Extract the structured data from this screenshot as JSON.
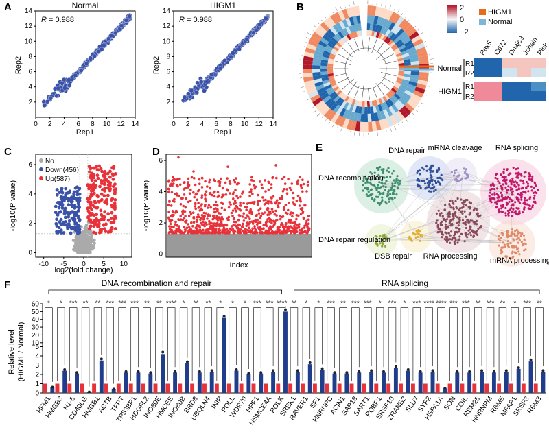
{
  "panels": {
    "A": {
      "label": "A",
      "left_title": "Normal",
      "right_title": "HIGM1",
      "r_text": "= 0.988",
      "r_italic": "R",
      "xlabel": "Rep1",
      "ylabel": "Rep2",
      "ticks": [
        "0",
        "2",
        "4",
        "6",
        "8",
        "10",
        "12",
        "14"
      ]
    },
    "B": {
      "label": "B",
      "legend_scale": [
        "2",
        "0",
        "−2"
      ],
      "legend_groups": [
        "HIGM1",
        "Normal"
      ],
      "heatmap_cols": [
        "Pax5",
        "Cd72",
        "Dnajc3",
        "Jchain",
        "Plek"
      ],
      "heatmap_rows": [
        "R1",
        "R2",
        "R1",
        "R2"
      ],
      "heatmap_groups": [
        "Normal",
        "HIGM1"
      ]
    },
    "C": {
      "label": "C",
      "legend": [
        "No",
        "Down(456)",
        "Up(587)"
      ],
      "xlabel": "log2(fold change)",
      "ylabel": "-log10(P value)",
      "xticks": [
        "-10",
        "-5",
        "0",
        "5",
        "10"
      ],
      "yticks": [
        "0",
        "2",
        "4",
        "6"
      ]
    },
    "D": {
      "label": "D",
      "xlabel": "Index",
      "ylabel": "-log10(P value)",
      "yticks": [
        "0",
        "2",
        "4",
        "6"
      ]
    },
    "E": {
      "label": "E",
      "clusters": [
        "DNA repair",
        "mRNA cleavage",
        "RNA splicing",
        "DNA recombination",
        "DNA repair regulation",
        "DSB repair",
        "RNA processing",
        "mRNA processing"
      ]
    },
    "F": {
      "label": "F",
      "group1": "DNA recombination and repair",
      "group2": "RNA splicing",
      "ylabel1": "Relative level",
      "ylabel2": "(HIGM1 / Normal)",
      "yticks": [
        "0",
        "1",
        "2",
        "3",
        "4",
        "5",
        "10",
        "20",
        "30",
        "40",
        "50",
        "60"
      ]
    }
  },
  "colors": {
    "blue": "#1f3d8a",
    "red": "#e8323a",
    "gray": "#aaaaaa",
    "scatter": "#3a52a8"
  },
  "chart_data": {
    "type": "bar",
    "title": "Relative level (HIGM1 / Normal)",
    "series_names": [
      "Normal",
      "HIGM1"
    ],
    "categories": [
      "HFM1",
      "HMGB3",
      "H1-5",
      "CD40LG",
      "HMGB1",
      "ACTB",
      "TFPT",
      "TP53BP1",
      "HDGFL2",
      "INO80E",
      "HMCES",
      "INO80B",
      "BRD8",
      "UBQLN4",
      "INIP",
      "POLL",
      "WDR70",
      "HPF1",
      "NSMCE4A",
      "POLK",
      "SREK1",
      "RAVER1",
      "SF1",
      "HNRNPC",
      "ACIN1",
      "SAP18",
      "SART1",
      "PQBP1",
      "SRSF10",
      "ZRANB2",
      "SLU7",
      "SYF2",
      "HSPA1A",
      "SON",
      "COIL",
      "RBM25",
      "HNRNPM",
      "RBM5",
      "MFAP1",
      "SRSF3",
      "RBM3"
    ],
    "values": [
      0.6,
      2.4,
      2.1,
      0.1,
      3.5,
      0.4,
      2.2,
      2.2,
      2.1,
      4.2,
      2.2,
      3.2,
      2.2,
      2.3,
      42,
      2.4,
      2.0,
      2.1,
      2.3,
      50,
      2.3,
      3.1,
      2.5,
      2.1,
      2.1,
      2.2,
      2.3,
      2.2,
      2.7,
      2.4,
      2.2,
      2.3,
      0.5,
      2.2,
      2.2,
      2.3,
      2.2,
      2.3,
      2.6,
      3.4,
      2.3
    ],
    "significance": [
      "*",
      "*",
      "***",
      "**",
      "**",
      "***",
      "***",
      "***",
      "**",
      "**",
      "****",
      "*",
      "**",
      "**",
      "*",
      "*",
      "*",
      "***",
      "***",
      "****",
      "**",
      "*",
      "*",
      "***",
      "**",
      "***",
      "***",
      "*",
      "***",
      "*",
      "***",
      "****",
      "****",
      "***",
      "***",
      "**",
      "***",
      "**",
      "*",
      "***",
      "**"
    ],
    "ylim": [
      0,
      60
    ]
  }
}
